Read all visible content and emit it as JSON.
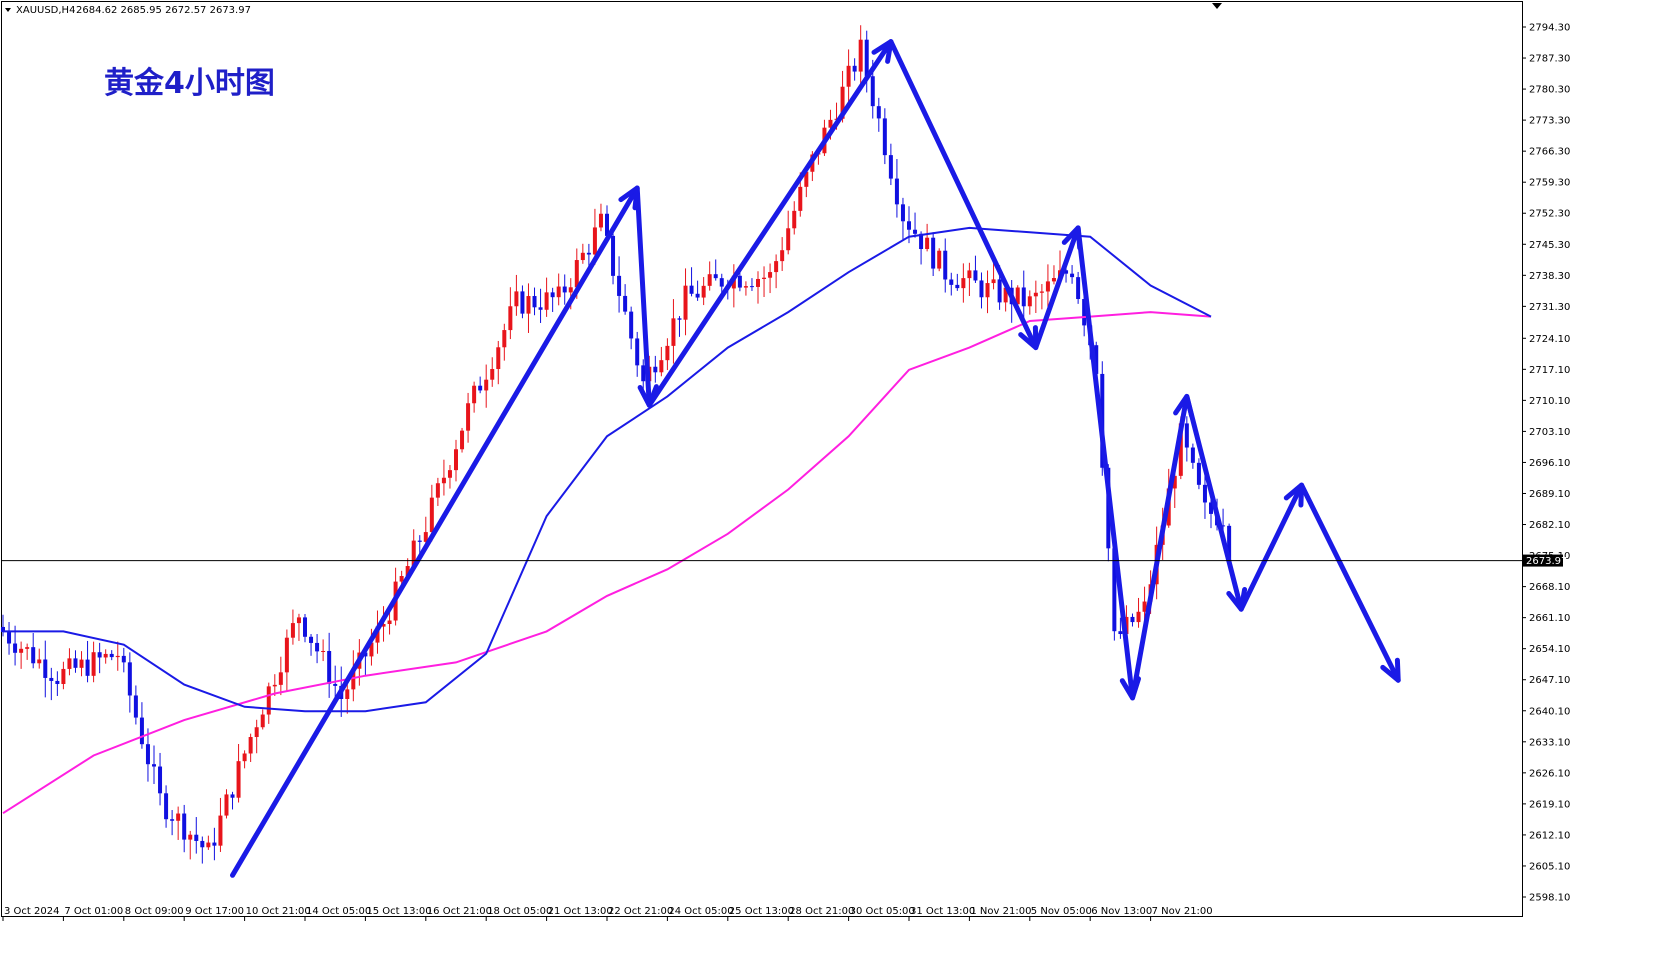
{
  "header": {
    "symbol": "XAUUSD,H4",
    "ohlc": "2684.62 2685.95 2672.57 2673.97",
    "menu_icon": "triangle-down-icon"
  },
  "title": "黄金4小时图",
  "current_price_label": "2673.97",
  "colors": {
    "bull": "#e8141b",
    "bear": "#1010e0",
    "ma_blue": "#1a1ae6",
    "ma_magenta": "#ff1fe0",
    "annotation": "#1a1ae6",
    "title": "#1f1fc8"
  },
  "chart_data": {
    "type": "candlestick",
    "timeframe": "H4",
    "ylim": [
      2594.5,
      2801.3
    ],
    "y_ticks": [
      "2794.30",
      "2787.30",
      "2780.30",
      "2773.30",
      "2766.30",
      "2759.30",
      "2752.30",
      "2745.30",
      "2738.30",
      "2731.30",
      "2724.10",
      "2717.10",
      "2710.10",
      "2703.10",
      "2696.10",
      "2689.10",
      "2682.10",
      "2675.10",
      "2668.10",
      "2661.10",
      "2654.10",
      "2647.10",
      "2640.10",
      "2633.10",
      "2626.10",
      "2619.10",
      "2612.10",
      "2605.10",
      "2598.10"
    ],
    "x_ticks": [
      "3 Oct 2024",
      "7 Oct 01:00",
      "8 Oct 09:00",
      "9 Oct 17:00",
      "10 Oct 21:00",
      "14 Oct 05:00",
      "15 Oct 13:00",
      "16 Oct 21:00",
      "18 Oct 05:00",
      "21 Oct 13:00",
      "22 Oct 21:00",
      "24 Oct 05:00",
      "25 Oct 13:00",
      "28 Oct 21:00",
      "30 Oct 05:00",
      "31 Oct 13:00",
      "1 Nov 21:00",
      "5 Nov 05:00",
      "6 Nov 13:00",
      "7 Nov 21:00"
    ],
    "anchors": [
      {
        "i": 0,
        "p": 2659
      },
      {
        "i": 10,
        "p": 2648
      },
      {
        "i": 20,
        "p": 2653
      },
      {
        "i": 27,
        "p": 2620
      },
      {
        "i": 35,
        "p": 2608
      },
      {
        "i": 43,
        "p": 2638
      },
      {
        "i": 50,
        "p": 2662
      },
      {
        "i": 57,
        "p": 2643
      },
      {
        "i": 64,
        "p": 2660
      },
      {
        "i": 71,
        "p": 2682
      },
      {
        "i": 78,
        "p": 2708
      },
      {
        "i": 86,
        "p": 2732
      },
      {
        "i": 93,
        "p": 2733
      },
      {
        "i": 100,
        "p": 2750
      },
      {
        "i": 107,
        "p": 2714
      },
      {
        "i": 114,
        "p": 2733
      },
      {
        "i": 121,
        "p": 2738
      },
      {
        "i": 128,
        "p": 2738
      },
      {
        "i": 135,
        "p": 2764
      },
      {
        "i": 143,
        "p": 2789
      },
      {
        "i": 150,
        "p": 2752
      },
      {
        "i": 157,
        "p": 2739
      },
      {
        "i": 164,
        "p": 2735
      },
      {
        "i": 171,
        "p": 2732
      },
      {
        "i": 178,
        "p": 2740
      },
      {
        "i": 182,
        "p": 2718
      },
      {
        "i": 185,
        "p": 2656
      },
      {
        "i": 190,
        "p": 2663
      },
      {
        "i": 196,
        "p": 2702
      },
      {
        "i": 200,
        "p": 2685
      },
      {
        "i": 203,
        "p": 2684
      }
    ],
    "last_close": 2673.97,
    "ma_fast": [
      [
        0,
        2658
      ],
      [
        10,
        2658
      ],
      [
        20,
        2655
      ],
      [
        30,
        2646
      ],
      [
        40,
        2641
      ],
      [
        50,
        2640
      ],
      [
        60,
        2640
      ],
      [
        70,
        2642
      ],
      [
        80,
        2653
      ],
      [
        90,
        2684
      ],
      [
        100,
        2702
      ],
      [
        110,
        2711
      ],
      [
        120,
        2722
      ],
      [
        130,
        2730
      ],
      [
        140,
        2739
      ],
      [
        150,
        2747
      ],
      [
        160,
        2749
      ],
      [
        170,
        2748
      ],
      [
        180,
        2747
      ],
      [
        190,
        2736
      ],
      [
        200,
        2729
      ]
    ],
    "ma_slow": [
      [
        0,
        2617
      ],
      [
        15,
        2630
      ],
      [
        30,
        2638
      ],
      [
        45,
        2644
      ],
      [
        60,
        2648
      ],
      [
        75,
        2651
      ],
      [
        90,
        2658
      ],
      [
        100,
        2666
      ],
      [
        110,
        2672
      ],
      [
        120,
        2680
      ],
      [
        130,
        2690
      ],
      [
        140,
        2702
      ],
      [
        150,
        2717
      ],
      [
        160,
        2722
      ],
      [
        170,
        2728
      ],
      [
        180,
        2729
      ],
      [
        190,
        2730
      ],
      [
        200,
        2729
      ]
    ],
    "annotation_path": [
      [
        38,
        2603
      ],
      [
        105,
        2758
      ],
      [
        107,
        2709
      ],
      [
        147,
        2791
      ],
      [
        171,
        2722
      ],
      [
        178,
        2749
      ],
      [
        187,
        2643
      ],
      [
        196,
        2711
      ],
      [
        205,
        2663
      ],
      [
        215,
        2691
      ],
      [
        231,
        2647
      ]
    ]
  }
}
